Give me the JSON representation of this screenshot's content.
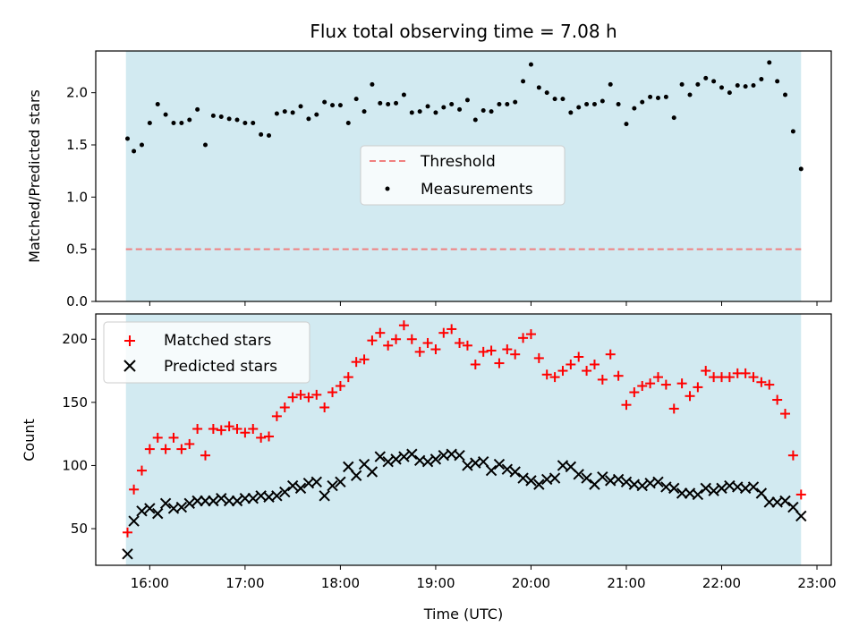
{
  "chart_data": [
    {
      "type": "scatter",
      "title": "Flux total observing time = 7.08 h",
      "xlabel": "",
      "ylabel": "Matched/Predicted stars",
      "ylim": [
        0,
        2.4
      ],
      "yticks": [
        "0.0",
        "0.5",
        "1.0",
        "1.5",
        "2.0"
      ],
      "observing_window": [
        "15:45",
        "22:50"
      ],
      "window_color": "#add8e6",
      "threshold": {
        "name": "Threshold",
        "value": 0.5,
        "color": "#f08080",
        "style": "dashed"
      },
      "legend": [
        "Threshold",
        "Measurements"
      ],
      "legend_position": "center",
      "series": [
        {
          "name": "Measurements",
          "color": "#000000",
          "marker": "dot",
          "x": [
            "15:46",
            "15:50",
            "15:55",
            "16:00",
            "16:05",
            "16:10",
            "16:15",
            "16:20",
            "16:25",
            "16:30",
            "16:35",
            "16:40",
            "16:45",
            "16:50",
            "16:55",
            "17:00",
            "17:05",
            "17:10",
            "17:15",
            "17:20",
            "17:25",
            "17:30",
            "17:35",
            "17:40",
            "17:45",
            "17:50",
            "17:55",
            "18:00",
            "18:05",
            "18:10",
            "18:15",
            "18:20",
            "18:25",
            "18:30",
            "18:35",
            "18:40",
            "18:45",
            "18:50",
            "18:55",
            "19:00",
            "19:05",
            "19:10",
            "19:15",
            "19:20",
            "19:25",
            "19:30",
            "19:35",
            "19:40",
            "19:45",
            "19:50",
            "19:55",
            "20:00",
            "20:05",
            "20:10",
            "20:15",
            "20:20",
            "20:25",
            "20:30",
            "20:35",
            "20:40",
            "20:45",
            "20:50",
            "20:55",
            "21:00",
            "21:05",
            "21:10",
            "21:15",
            "21:20",
            "21:25",
            "21:30",
            "21:35",
            "21:40",
            "21:45",
            "21:50",
            "21:55",
            "22:00",
            "22:05",
            "22:10",
            "22:15",
            "22:20",
            "22:25",
            "22:30",
            "22:35",
            "22:40",
            "22:45",
            "22:50"
          ],
          "y": [
            1.56,
            1.44,
            1.5,
            1.71,
            1.89,
            1.79,
            1.71,
            1.71,
            1.74,
            1.84,
            1.5,
            1.78,
            1.77,
            1.75,
            1.74,
            1.71,
            1.71,
            1.6,
            1.59,
            1.8,
            1.82,
            1.81,
            1.87,
            1.75,
            1.79,
            1.91,
            1.88,
            1.88,
            1.71,
            1.94,
            1.82,
            2.08,
            1.9,
            1.89,
            1.9,
            1.98,
            1.81,
            1.82,
            1.87,
            1.81,
            1.86,
            1.89,
            1.84,
            1.93,
            1.74,
            1.83,
            1.82,
            1.89,
            1.89,
            1.91,
            2.11,
            2.27,
            2.05,
            2.0,
            1.94,
            1.94,
            1.81,
            1.86,
            1.89,
            1.89,
            1.92,
            2.08,
            1.89,
            1.7,
            1.85,
            1.91,
            1.96,
            1.95,
            1.96,
            1.76,
            2.08,
            1.98,
            2.08,
            2.14,
            2.11,
            2.05,
            2.0,
            2.07,
            2.06,
            2.07,
            2.13,
            2.29,
            2.11,
            1.98,
            1.63,
            1.27
          ]
        }
      ]
    },
    {
      "type": "scatter",
      "title": "",
      "xlabel": "Time (UTC)",
      "ylabel": "Count",
      "ylim": [
        21,
        220
      ],
      "yticks": [
        "50",
        "100",
        "150",
        "200"
      ],
      "xticks": [
        "16:00",
        "17:00",
        "18:00",
        "19:00",
        "20:00",
        "21:00",
        "22:00",
        "23:00"
      ],
      "xlim": [
        "15:26",
        "23:09"
      ],
      "observing_window": [
        "15:45",
        "22:50"
      ],
      "window_color": "#add8e6",
      "legend": [
        "Matched stars",
        "Predicted stars"
      ],
      "legend_position": "top-left",
      "series": [
        {
          "name": "Matched stars",
          "color": "#ff0000",
          "marker": "plus",
          "x": [
            "15:46",
            "15:50",
            "15:55",
            "16:00",
            "16:05",
            "16:10",
            "16:15",
            "16:20",
            "16:25",
            "16:30",
            "16:35",
            "16:40",
            "16:45",
            "16:50",
            "16:55",
            "17:00",
            "17:05",
            "17:10",
            "17:15",
            "17:20",
            "17:25",
            "17:30",
            "17:35",
            "17:40",
            "17:45",
            "17:50",
            "17:55",
            "18:00",
            "18:05",
            "18:10",
            "18:15",
            "18:20",
            "18:25",
            "18:30",
            "18:35",
            "18:40",
            "18:45",
            "18:50",
            "18:55",
            "19:00",
            "19:05",
            "19:10",
            "19:15",
            "19:20",
            "19:25",
            "19:30",
            "19:35",
            "19:40",
            "19:45",
            "19:50",
            "19:55",
            "20:00",
            "20:05",
            "20:10",
            "20:15",
            "20:20",
            "20:25",
            "20:30",
            "20:35",
            "20:40",
            "20:45",
            "20:50",
            "20:55",
            "21:00",
            "21:05",
            "21:10",
            "21:15",
            "21:20",
            "21:25",
            "21:30",
            "21:35",
            "21:40",
            "21:45",
            "21:50",
            "21:55",
            "22:00",
            "22:05",
            "22:10",
            "22:15",
            "22:20",
            "22:25",
            "22:30",
            "22:35",
            "22:40",
            "22:45",
            "22:50"
          ],
          "y": [
            47,
            81,
            96,
            113,
            122,
            113,
            122,
            113,
            117,
            129,
            108,
            129,
            128,
            131,
            129,
            126,
            129,
            122,
            123,
            139,
            146,
            154,
            156,
            154,
            156,
            146,
            158,
            163,
            170,
            182,
            184,
            199,
            205,
            195,
            200,
            211,
            200,
            190,
            197,
            192,
            205,
            208,
            197,
            195,
            180,
            190,
            191,
            181,
            192,
            188,
            201,
            204,
            185,
            172,
            170,
            175,
            180,
            186,
            175,
            180,
            168,
            188,
            171,
            148,
            158,
            163,
            165,
            170,
            164,
            145,
            165,
            155,
            162,
            175,
            170,
            170,
            170,
            173,
            173,
            170,
            166,
            164,
            152,
            141,
            108,
            77
          ]
        },
        {
          "name": "Predicted stars",
          "color": "#000000",
          "marker": "x",
          "x": [
            "15:46",
            "15:50",
            "15:55",
            "16:00",
            "16:05",
            "16:10",
            "16:15",
            "16:20",
            "16:25",
            "16:30",
            "16:35",
            "16:40",
            "16:45",
            "16:50",
            "16:55",
            "17:00",
            "17:05",
            "17:10",
            "17:15",
            "17:20",
            "17:25",
            "17:30",
            "17:35",
            "17:40",
            "17:45",
            "17:50",
            "17:55",
            "18:00",
            "18:05",
            "18:10",
            "18:15",
            "18:20",
            "18:25",
            "18:30",
            "18:35",
            "18:40",
            "18:45",
            "18:50",
            "18:55",
            "19:00",
            "19:05",
            "19:10",
            "19:15",
            "19:20",
            "19:25",
            "19:30",
            "19:35",
            "19:40",
            "19:45",
            "19:50",
            "19:55",
            "20:00",
            "20:05",
            "20:10",
            "20:15",
            "20:20",
            "20:25",
            "20:30",
            "20:35",
            "20:40",
            "20:45",
            "20:50",
            "20:55",
            "21:00",
            "21:05",
            "21:10",
            "21:15",
            "21:20",
            "21:25",
            "21:30",
            "21:35",
            "21:40",
            "21:45",
            "21:50",
            "21:55",
            "22:00",
            "22:05",
            "22:10",
            "22:15",
            "22:20",
            "22:25",
            "22:30",
            "22:35",
            "22:40",
            "22:45",
            "22:50"
          ],
          "y": [
            30,
            56,
            64,
            66,
            62,
            70,
            66,
            67,
            70,
            72,
            72,
            72,
            74,
            72,
            72,
            74,
            74,
            76,
            75,
            76,
            79,
            84,
            82,
            86,
            87,
            76,
            84,
            87,
            99,
            92,
            101,
            95,
            107,
            103,
            105,
            107,
            109,
            104,
            103,
            105,
            108,
            109,
            108,
            100,
            102,
            103,
            96,
            101,
            97,
            95,
            90,
            88,
            85,
            89,
            90,
            100,
            99,
            93,
            90,
            85,
            91,
            88,
            89,
            87,
            85,
            84,
            86,
            87,
            83,
            82,
            78,
            78,
            77,
            82,
            80,
            82,
            84,
            83,
            82,
            83,
            78,
            71,
            71,
            72,
            67,
            60
          ]
        }
      ]
    }
  ]
}
